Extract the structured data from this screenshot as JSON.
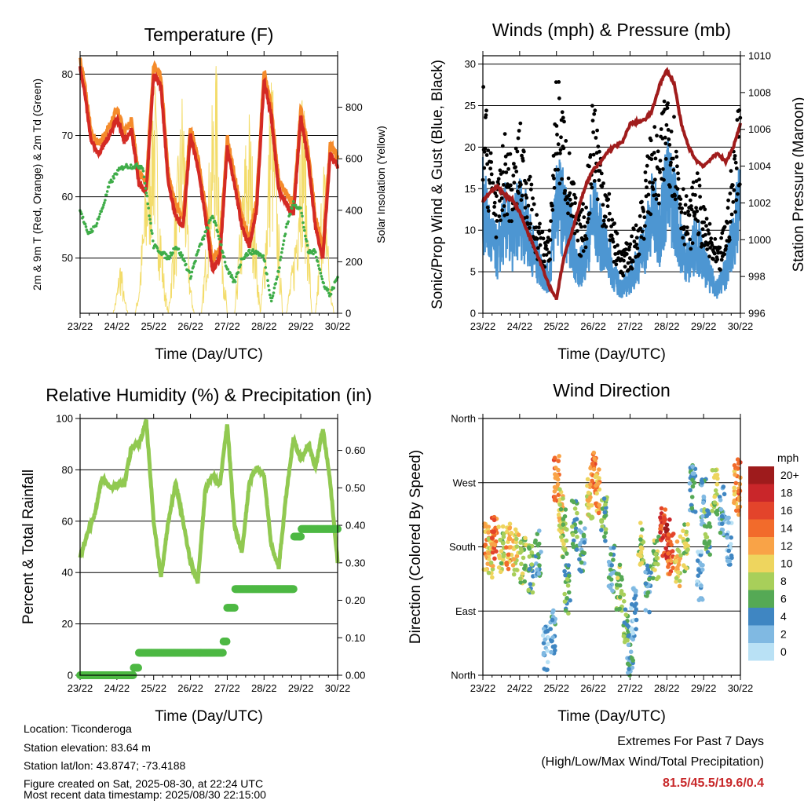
{
  "footer": {
    "location": "Location: Ticonderoga",
    "elevation": "Station elevation: 83.64 m",
    "latlon": "Station lat/lon: 43.8747; -73.4188",
    "created": "Figure created on Sat, 2025-08-30, at 22:24 UTC",
    "recent": "Most recent data timestamp: 2025/08/30 22:15:00"
  },
  "extremes": {
    "title": "Extremes For Past 7 Days",
    "subtitle": "(High/Low/Max Wind/Total Precipitation)",
    "value": "81.5/45.5/19.6/0.4"
  },
  "colors": {
    "temp2m": "#d42a24",
    "temp9m": "#f58b2b",
    "dewpoint": "#3fad49",
    "solar": "#f3dc6a",
    "wind": "#4d96d2",
    "gust": "#000000",
    "pressure": "#a01c1c",
    "rh": "#91c951",
    "precip": "#4db843"
  },
  "chart_data": [
    {
      "id": "temperature",
      "type": "line",
      "title": "Temperature (F)",
      "xlabel": "Time (Day/UTC)",
      "ylabel": "2m & 9m T (Red, Orange) & 2m Td (Green)",
      "y2label": "Solar Insolation (Yellow)",
      "x_ticks": [
        "23/22",
        "24/22",
        "25/22",
        "26/22",
        "27/22",
        "28/22",
        "29/22",
        "30/22"
      ],
      "xlim": [
        0,
        7
      ],
      "ylim": [
        41,
        83
      ],
      "y_ticks": [
        50,
        60,
        70,
        80
      ],
      "y2lim": [
        0,
        1000
      ],
      "y2_ticks": [
        0,
        200,
        400,
        600,
        800
      ],
      "grid": true,
      "series": [
        {
          "key": "temp2m",
          "x": [
            0,
            0.1,
            0.3,
            0.5,
            0.8,
            1.0,
            1.2,
            1.4,
            1.6,
            1.8,
            2.0,
            2.2,
            2.4,
            2.6,
            2.8,
            3.0,
            3.2,
            3.4,
            3.6,
            3.8,
            4.0,
            4.2,
            4.4,
            4.6,
            4.8,
            5.0,
            5.2,
            5.4,
            5.6,
            5.8,
            6.0,
            6.2,
            6.4,
            6.6,
            6.8,
            7.0
          ],
          "y": [
            81,
            78,
            69,
            67,
            70,
            73,
            69,
            71,
            62,
            61,
            80,
            78,
            62,
            57,
            55,
            70,
            65,
            57,
            48,
            50,
            68,
            62,
            55,
            52,
            58,
            79,
            73,
            61,
            59,
            57,
            73,
            66,
            55,
            50,
            67,
            65
          ]
        },
        {
          "key": "dewpoint",
          "x": [
            0,
            0.2,
            0.4,
            0.6,
            0.8,
            1.0,
            1.2,
            1.5,
            1.7,
            2.0,
            2.2,
            2.4,
            2.6,
            2.8,
            3.0,
            3.2,
            3.4,
            3.6,
            3.8,
            4.0,
            4.2,
            4.4,
            4.6,
            4.8,
            5.0,
            5.2,
            5.4,
            5.6,
            5.8,
            6.0,
            6.2,
            6.4,
            6.6,
            6.8,
            7.0
          ],
          "y": [
            58,
            54,
            55,
            58,
            62,
            64,
            65,
            65,
            65,
            52,
            51,
            50,
            52,
            50,
            47,
            51,
            54,
            57,
            53,
            48,
            46,
            50,
            51,
            51,
            50,
            43,
            48,
            55,
            59,
            58,
            51,
            51,
            46,
            44,
            47
          ]
        },
        {
          "key": "solar",
          "x": [
            0.9,
            1.0,
            1.1,
            1.2,
            1.3,
            1.4,
            1.5,
            1.6,
            1.7,
            1.8,
            1.9,
            2.0,
            2.1,
            2.2,
            2.3,
            2.4,
            2.5,
            2.6,
            2.7,
            2.8,
            2.9,
            3.0,
            3.1,
            3.2,
            3.3,
            3.4,
            3.5,
            3.6,
            3.7,
            3.8,
            3.9,
            4.0,
            4.1,
            4.2,
            4.3,
            4.4,
            4.5,
            4.6,
            4.7,
            4.8,
            4.9,
            5.0,
            5.1,
            5.2,
            5.3,
            5.4,
            5.5,
            5.6,
            5.7,
            5.8,
            5.9,
            6.0,
            6.1,
            6.2,
            6.3,
            6.4,
            6.5,
            6.6,
            6.7,
            6.8,
            6.9
          ],
          "y": [
            0,
            80,
            200,
            60,
            0,
            0,
            0,
            100,
            300,
            500,
            700,
            900,
            600,
            300,
            100,
            0,
            200,
            400,
            600,
            820,
            400,
            100,
            0,
            0,
            0,
            200,
            500,
            700,
            900,
            500,
            200,
            0,
            0,
            0,
            200,
            400,
            600,
            700,
            500,
            200,
            0,
            200,
            500,
            900,
            600,
            300,
            0,
            0,
            100,
            200,
            400,
            800,
            700,
            300,
            0,
            0,
            200,
            600,
            400,
            100,
            0
          ]
        }
      ]
    },
    {
      "id": "winds",
      "type": "scatter",
      "title": "Winds (mph) & Pressure (mb)",
      "xlabel": "Time (Day/UTC)",
      "ylabel": "Sonic/Prop Wind & Gust (Blue, Black)",
      "y2label": "Station Pressure (Maroon)",
      "x_ticks": [
        "23/22",
        "24/22",
        "25/22",
        "26/22",
        "27/22",
        "28/22",
        "29/22",
        "30/22"
      ],
      "xlim": [
        0,
        7
      ],
      "ylim": [
        0,
        31
      ],
      "y_ticks": [
        0,
        5,
        10,
        15,
        20,
        25,
        30
      ],
      "y2lim": [
        996,
        1010
      ],
      "y2_ticks": [
        996,
        998,
        1000,
        1002,
        1004,
        1006,
        1008,
        1010
      ],
      "grid": true,
      "series": [
        {
          "key": "wind",
          "x": [
            0,
            0.2,
            0.4,
            0.6,
            0.8,
            1.0,
            1.2,
            1.4,
            1.6,
            1.8,
            2.0,
            2.2,
            2.4,
            2.6,
            2.8,
            3.0,
            3.2,
            3.4,
            3.6,
            3.8,
            4.0,
            4.2,
            4.4,
            4.6,
            4.8,
            5.0,
            5.2,
            5.4,
            5.6,
            5.8,
            6.0,
            6.2,
            6.4,
            6.6,
            6.8,
            7.0
          ],
          "y": [
            13,
            9,
            7,
            11,
            9,
            12,
            10,
            7,
            5,
            4,
            14,
            12,
            9,
            5,
            7,
            12,
            9,
            7,
            4,
            3,
            4,
            6,
            8,
            12,
            10,
            15,
            13,
            8,
            6,
            9,
            6,
            4,
            3,
            5,
            9,
            13
          ]
        },
        {
          "key": "gust",
          "x": [
            0,
            0.2,
            0.4,
            0.6,
            0.8,
            1.0,
            1.2,
            1.4,
            1.6,
            1.8,
            2.0,
            2.2,
            2.4,
            2.6,
            2.8,
            3.0,
            3.2,
            3.4,
            3.6,
            3.8,
            4.0,
            4.2,
            4.4,
            4.6,
            4.8,
            5.0,
            5.2,
            5.4,
            5.6,
            5.8,
            6.0,
            6.2,
            6.4,
            6.6,
            6.8,
            7.0
          ],
          "y": [
            22,
            16,
            12,
            17,
            14,
            18,
            15,
            10,
            8,
            7,
            23,
            19,
            14,
            9,
            11,
            22,
            16,
            12,
            8,
            6,
            7,
            9,
            13,
            18,
            16,
            23,
            19,
            13,
            10,
            14,
            10,
            8,
            6,
            9,
            15,
            22
          ]
        },
        {
          "key": "pressure",
          "x": [
            0,
            0.2,
            0.4,
            0.6,
            0.8,
            1.0,
            1.2,
            1.4,
            1.6,
            1.8,
            2.0,
            2.2,
            2.4,
            2.6,
            2.8,
            3.0,
            3.2,
            3.4,
            3.6,
            3.8,
            4.0,
            4.2,
            4.4,
            4.6,
            4.8,
            5.0,
            5.2,
            5.4,
            5.6,
            5.8,
            6.0,
            6.2,
            6.4,
            6.6,
            6.8,
            7.0
          ],
          "y": [
            1002.1,
            1002.6,
            1002.9,
            1002.4,
            1002.2,
            1001.5,
            1000.5,
            999.6,
            998.6,
            997.5,
            996.8,
            999,
            1000.3,
            1001.7,
            1003,
            1003.8,
            1004.2,
            1004.8,
            1005.1,
            1005.3,
            1006.3,
            1006.4,
            1006.5,
            1007,
            1008.4,
            1009.2,
            1008.5,
            1006.2,
            1005,
            1004.3,
            1004,
            1004.4,
            1004.7,
            1004.2,
            1005,
            1006.3
          ]
        }
      ]
    },
    {
      "id": "humidity",
      "type": "line",
      "title": "Relative Humidity (%) & Precipitation (in)",
      "xlabel": "Time (Day/UTC)",
      "ylabel": "Percent & Total Rainfall",
      "x_ticks": [
        "23/22",
        "24/22",
        "25/22",
        "26/22",
        "27/22",
        "28/22",
        "29/22",
        "30/22"
      ],
      "xlim": [
        0,
        7
      ],
      "ylim": [
        0,
        100
      ],
      "y_ticks": [
        0,
        20,
        40,
        60,
        80,
        100
      ],
      "y2lim": [
        0,
        0.685
      ],
      "y2_ticks": [
        "0.00",
        "0.10",
        "0.20",
        "0.30",
        "0.40",
        "0.50",
        "0.60"
      ],
      "grid": true,
      "series": [
        {
          "key": "rh",
          "x": [
            0,
            0.2,
            0.4,
            0.6,
            0.8,
            1.0,
            1.2,
            1.4,
            1.6,
            1.8,
            2.0,
            2.2,
            2.4,
            2.6,
            2.8,
            3.0,
            3.2,
            3.4,
            3.6,
            3.8,
            4.0,
            4.2,
            4.4,
            4.6,
            4.8,
            5.0,
            5.2,
            5.4,
            5.6,
            5.8,
            6.0,
            6.2,
            6.4,
            6.6,
            6.8,
            7.0
          ],
          "y": [
            46,
            55,
            63,
            77,
            73,
            74,
            74,
            89,
            90,
            99,
            60,
            38,
            60,
            75,
            60,
            44,
            36,
            72,
            78,
            74,
            98,
            58,
            48,
            75,
            81,
            78,
            50,
            42,
            70,
            92,
            84,
            90,
            81,
            96,
            75,
            44
          ]
        },
        {
          "key": "precip",
          "x": [
            0,
            0.2,
            0.4,
            0.6,
            0.8,
            1.0,
            1.2,
            1.4,
            1.45,
            1.6,
            1.8,
            2.0,
            2.2,
            2.4,
            2.6,
            2.8,
            3.0,
            3.2,
            3.4,
            3.6,
            3.8,
            3.9,
            4.0,
            4.2,
            4.4,
            4.6,
            4.8,
            5.0,
            5.2,
            5.4,
            5.6,
            5.8,
            6.0,
            6.2,
            6.4,
            6.6,
            6.8,
            7.0
          ],
          "y": [
            0,
            0,
            0,
            0,
            0,
            0,
            0,
            0,
            0.02,
            0.06,
            0.06,
            0.06,
            0.06,
            0.06,
            0.06,
            0.06,
            0.06,
            0.06,
            0.06,
            0.06,
            0.06,
            0.09,
            0.18,
            0.23,
            0.23,
            0.23,
            0.23,
            0.23,
            0.23,
            0.23,
            0.23,
            0.37,
            0.39,
            0.39,
            0.39,
            0.39,
            0.39,
            0.39
          ]
        }
      ]
    },
    {
      "id": "direction",
      "type": "scatter",
      "title": "Wind Direction",
      "xlabel": "Time (Day/UTC)",
      "ylabel": "Direction (Colored By Speed)",
      "x_ticks": [
        "23/22",
        "24/22",
        "25/22",
        "26/22",
        "27/22",
        "28/22",
        "29/22",
        "30/22"
      ],
      "xlim": [
        0,
        7
      ],
      "ylim": [
        0,
        360
      ],
      "y_tick_labels": [
        "North",
        "East",
        "South",
        "West",
        "North"
      ],
      "y_tick_values": [
        0,
        90,
        180,
        270,
        360
      ],
      "grid": true,
      "legend": {
        "title": "mph",
        "labels": [
          "20+",
          "18",
          "16",
          "14",
          "12",
          "10",
          "8",
          "6",
          "4",
          "2",
          "0"
        ],
        "colors": [
          "#9e1b1c",
          "#c9262a",
          "#e3442b",
          "#f26b2b",
          "#f9a347",
          "#eed55e",
          "#a8cf5a",
          "#55a955",
          "#3f86c2",
          "#80b9e2",
          "#b9e1f5"
        ]
      },
      "x": [
        0.1,
        0.2,
        0.3,
        0.5,
        0.7,
        0.9,
        1.1,
        1.3,
        1.5,
        1.7,
        1.9,
        2.0,
        2.1,
        2.2,
        2.3,
        2.5,
        2.7,
        2.9,
        3.0,
        3.1,
        3.3,
        3.5,
        3.7,
        3.9,
        4.0,
        4.1,
        4.3,
        4.5,
        4.7,
        4.9,
        5.0,
        5.1,
        5.3,
        5.5,
        5.7,
        5.9,
        6.0,
        6.1,
        6.3,
        6.5,
        6.7,
        6.9,
        7.0
      ],
      "y": [
        180,
        170,
        190,
        175,
        180,
        175,
        160,
        150,
        170,
        40,
        60,
        275,
        230,
        200,
        120,
        210,
        180,
        250,
        280,
        260,
        220,
        150,
        120,
        80,
        30,
        90,
        190,
        120,
        160,
        200,
        190,
        175,
        160,
        180,
        260,
        140,
        240,
        200,
        260,
        230,
        190,
        260,
        270
      ],
      "speed": [
        12,
        10,
        14,
        8,
        12,
        10,
        8,
        6,
        4,
        2,
        4,
        14,
        10,
        8,
        6,
        6,
        4,
        10,
        14,
        12,
        6,
        4,
        8,
        6,
        4,
        2,
        8,
        4,
        8,
        16,
        18,
        14,
        10,
        8,
        4,
        2,
        4,
        6,
        8,
        4,
        2,
        12,
        14
      ]
    }
  ]
}
